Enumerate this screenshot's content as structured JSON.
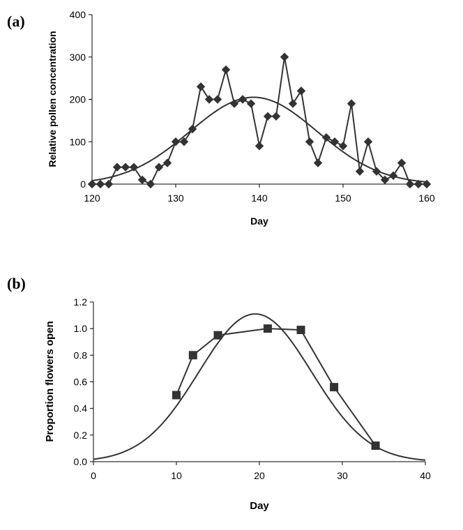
{
  "chart_data": [
    {
      "type": "line",
      "panel_label": "(a)",
      "xlabel": "Day",
      "ylabel": "Relative pollen concentration",
      "xlim": [
        120,
        160
      ],
      "ylim": [
        0,
        400
      ],
      "x_ticks": [
        120,
        130,
        140,
        150,
        160
      ],
      "y_ticks": [
        0,
        100,
        200,
        300,
        400
      ],
      "marker": "diamond",
      "series": [
        {
          "x": [
            120,
            121,
            122,
            123,
            124,
            125,
            126,
            127,
            128,
            129,
            130,
            131,
            132,
            133,
            134,
            135,
            136,
            137,
            138,
            139,
            140,
            141,
            142,
            143,
            144,
            145,
            146,
            147,
            148,
            149,
            150,
            151,
            152,
            153,
            154,
            155,
            156,
            157,
            158,
            159,
            160
          ],
          "values": [
            0,
            0,
            0,
            40,
            40,
            40,
            10,
            0,
            40,
            50,
            100,
            100,
            130,
            230,
            200,
            200,
            270,
            190,
            200,
            190,
            90,
            160,
            160,
            300,
            190,
            220,
            100,
            50,
            110,
            100,
            90,
            190,
            30,
            100,
            30,
            10,
            20,
            50,
            0,
            0,
            0
          ]
        }
      ],
      "fit": {
        "type": "gaussian",
        "peak": 205,
        "center": 139.3,
        "sd": 7.6
      }
    },
    {
      "type": "line",
      "panel_label": "(b)",
      "xlabel": "Day",
      "ylabel": "Proportion flowers open",
      "xlim": [
        0,
        40
      ],
      "ylim": [
        0,
        1.2
      ],
      "x_ticks": [
        "0",
        "10",
        "20",
        "30",
        "40"
      ],
      "y_ticks": [
        "0.0",
        "0.2",
        "0.4",
        "0.6",
        "0.8",
        "1.0",
        "1.2"
      ],
      "marker": "square",
      "series": [
        {
          "x": [
            10,
            12,
            15,
            21,
            25,
            29,
            34
          ],
          "values": [
            0.5,
            0.8,
            0.95,
            1.0,
            0.99,
            0.56,
            0.12
          ]
        }
      ],
      "fit": {
        "type": "gaussian",
        "peak": 1.11,
        "center": 19.5,
        "sd": 6.8
      }
    }
  ]
}
